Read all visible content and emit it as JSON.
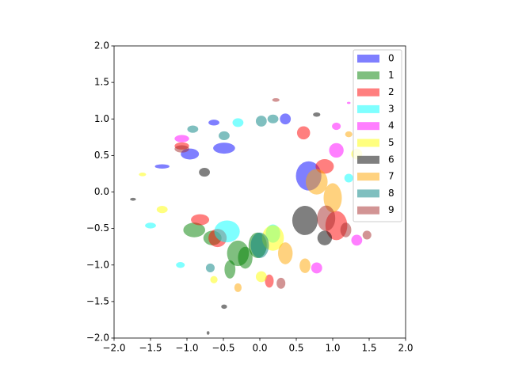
{
  "chart_data": {
    "type": "ellipse",
    "alpha": 0.5,
    "legend": "upper right",
    "xlim": [
      -2,
      2
    ],
    "ylim": [
      -2,
      2
    ],
    "xticks": [
      {
        "value": -2,
        "label": "−2.0"
      },
      {
        "value": -1.5,
        "label": "−1.5"
      },
      {
        "value": -1,
        "label": "−1.0"
      },
      {
        "value": -0.5,
        "label": "−0.5"
      },
      {
        "value": 0,
        "label": "0.0"
      },
      {
        "value": 0.5,
        "label": "0.5"
      },
      {
        "value": 1,
        "label": "1.0"
      },
      {
        "value": 1.5,
        "label": "1.5"
      },
      {
        "value": 2,
        "label": "2.0"
      }
    ],
    "yticks": [
      {
        "value": -2,
        "label": "−2.0"
      },
      {
        "value": -1.5,
        "label": "−1.5"
      },
      {
        "value": -1,
        "label": "−1.0"
      },
      {
        "value": -0.5,
        "label": "−0.5"
      },
      {
        "value": 0,
        "label": "0.0"
      },
      {
        "value": 0.5,
        "label": "0.5"
      },
      {
        "value": 1,
        "label": "1.0"
      },
      {
        "value": 1.5,
        "label": "1.5"
      },
      {
        "value": 2,
        "label": "2.0"
      }
    ],
    "series": [
      {
        "name": "0",
        "color": "#0000ff",
        "x": [
          0.67,
          -0.49,
          -0.96,
          0.35,
          -0.63,
          -1.34
        ],
        "y": [
          0.22,
          0.6,
          0.52,
          1.0,
          0.95,
          0.35
        ],
        "width": [
          0.35,
          0.3,
          0.25,
          0.15,
          0.15,
          0.2
        ],
        "height": [
          0.4,
          0.15,
          0.15,
          0.15,
          0.08,
          0.06
        ]
      },
      {
        "name": "1",
        "color": "#008000",
        "x": [
          -0.3,
          -0.9,
          -0.03,
          -0.41,
          -0.65,
          -0.2
        ],
        "y": [
          -0.84,
          -0.52,
          -0.73,
          -1.06,
          -0.63,
          -0.9
        ],
        "width": [
          0.3,
          0.3,
          0.25,
          0.15,
          0.25,
          0.2
        ],
        "height": [
          0.35,
          0.2,
          0.35,
          0.25,
          0.2,
          0.3
        ]
      },
      {
        "name": "2",
        "color": "#ff0000",
        "x": [
          -0.82,
          1.05,
          0.89,
          0.6,
          -1.07,
          0.13,
          -0.58
        ],
        "y": [
          -0.38,
          -0.46,
          0.35,
          0.81,
          0.63,
          -1.22,
          -0.63
        ],
        "width": [
          0.25,
          0.3,
          0.25,
          0.18,
          0.2,
          0.12,
          0.25
        ],
        "height": [
          0.15,
          0.4,
          0.2,
          0.18,
          0.1,
          0.18,
          0.25
        ]
      },
      {
        "name": "3",
        "color": "#00ffff",
        "x": [
          -0.45,
          -1.5,
          -1.09,
          -0.3,
          1.22,
          0.18
        ],
        "y": [
          -0.54,
          -0.46,
          -1.0,
          0.95,
          0.19,
          -0.57
        ],
        "width": [
          0.35,
          0.15,
          0.12,
          0.15,
          0.12,
          0.2
        ],
        "height": [
          0.3,
          0.08,
          0.08,
          0.12,
          0.12,
          0.25
        ]
      },
      {
        "name": "4",
        "color": "#ff00ff",
        "x": [
          1.05,
          1.33,
          0.78,
          -1.07,
          1.22,
          1.05
        ],
        "y": [
          0.57,
          -0.66,
          -1.04,
          0.73,
          1.22,
          0.9
        ],
        "width": [
          0.2,
          0.15,
          0.15,
          0.2,
          0.05,
          0.12
        ],
        "height": [
          0.2,
          0.15,
          0.15,
          0.1,
          0.03,
          0.1
        ]
      },
      {
        "name": "5",
        "color": "#ffff00",
        "x": [
          0.18,
          -1.34,
          -0.63,
          -1.61,
          1.33,
          0.02
        ],
        "y": [
          -0.63,
          -0.24,
          -1.2,
          0.24,
          0.52,
          -1.16
        ],
        "width": [
          0.3,
          0.15,
          0.1,
          0.1,
          0.15,
          0.15
        ],
        "height": [
          0.35,
          0.1,
          0.1,
          0.05,
          0.15,
          0.15
        ]
      },
      {
        "name": "6",
        "color": "#000000",
        "x": [
          0.62,
          -0.76,
          -0.49,
          0.78,
          -0.71,
          -1.74,
          0.89
        ],
        "y": [
          -0.39,
          0.27,
          -1.57,
          1.06,
          -1.93,
          -0.1,
          -0.63
        ],
        "width": [
          0.35,
          0.15,
          0.08,
          0.1,
          0.04,
          0.08,
          0.2
        ],
        "height": [
          0.4,
          0.12,
          0.06,
          0.06,
          0.05,
          0.04,
          0.2
        ]
      },
      {
        "name": "7",
        "color": "#ffa500",
        "x": [
          0.78,
          1.0,
          0.35,
          0.62,
          -0.3,
          1.22
        ],
        "y": [
          0.14,
          -0.08,
          -0.84,
          -1.01,
          -1.31,
          0.79
        ],
        "width": [
          0.3,
          0.25,
          0.2,
          0.15,
          0.1,
          0.1
        ],
        "height": [
          0.35,
          0.4,
          0.3,
          0.2,
          0.12,
          0.08
        ]
      },
      {
        "name": "8",
        "color": "#008080",
        "x": [
          0.0,
          -0.49,
          -0.92,
          0.18,
          0.02,
          -0.68
        ],
        "y": [
          -0.73,
          0.77,
          0.86,
          1.0,
          0.97,
          -1.04
        ],
        "width": [
          0.25,
          0.15,
          0.15,
          0.15,
          0.15,
          0.12
        ],
        "height": [
          0.35,
          0.12,
          0.1,
          0.12,
          0.15,
          0.12
        ]
      },
      {
        "name": "9",
        "color": "#a52a2a",
        "x": [
          0.91,
          -1.07,
          1.18,
          0.29,
          1.47,
          0.22
        ],
        "y": [
          -0.36,
          0.59,
          -0.52,
          -1.25,
          -0.59,
          1.26
        ],
        "width": [
          0.25,
          0.2,
          0.15,
          0.12,
          0.12,
          0.1
        ],
        "height": [
          0.35,
          0.1,
          0.2,
          0.15,
          0.12,
          0.05
        ]
      }
    ]
  }
}
